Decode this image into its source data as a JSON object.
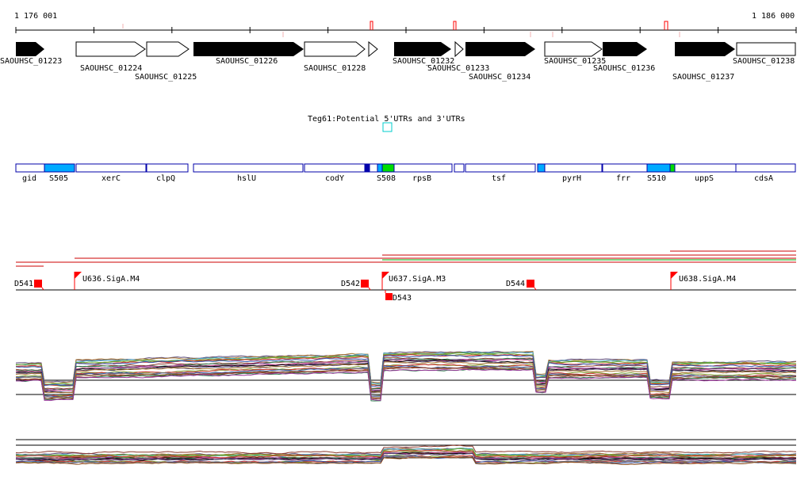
{
  "ruler": {
    "start_label": "1 176 001",
    "end_label": "1 186 000"
  },
  "colors": {
    "accent_red": "#ff0000",
    "region_blue": "#0000aa",
    "srna_cyan": "#00aaff",
    "srna_green": "#00dd00",
    "dark_blue": "#0000aa",
    "utr_cyan": "#00cccc"
  },
  "cds_genes": [
    {
      "id": "SAOUHSC_01223",
      "filled": true,
      "strand": "+"
    },
    {
      "id": "SAOUHSC_01224",
      "filled": false,
      "strand": "+"
    },
    {
      "id": "SAOUHSC_01225",
      "filled": false,
      "strand": "+"
    },
    {
      "id": "SAOUHSC_01226",
      "filled": true,
      "strand": "+"
    },
    {
      "id": "SAOUHSC_01228",
      "filled": false,
      "strand": "+"
    },
    {
      "id": "SAOUHSC_01232",
      "filled": true,
      "strand": "+"
    },
    {
      "id": "SAOUHSC_01233",
      "filled": false,
      "strand": "+"
    },
    {
      "id": "SAOUHSC_01234",
      "filled": true,
      "strand": "+"
    },
    {
      "id": "SAOUHSC_01235",
      "filled": false,
      "strand": "+"
    },
    {
      "id": "SAOUHSC_01236",
      "filled": true,
      "strand": "+"
    },
    {
      "id": "SAOUHSC_01237",
      "filled": true,
      "strand": "+"
    },
    {
      "id": "SAOUHSC_01238",
      "filled": false,
      "strand": "+"
    }
  ],
  "utr_track": {
    "label": "Teg61:Potential 5'UTRs and 3'UTRs"
  },
  "gene_names": [
    "gid",
    "S505",
    "xerC",
    "clpQ",
    "hslU",
    "codY",
    "S508",
    "rpsB",
    "tsf",
    "pyrH",
    "frr",
    "S510",
    "uppS",
    "cdsA"
  ],
  "promoters": [
    {
      "label": "D541",
      "kind": "D"
    },
    {
      "label": "U636.SigA.M4",
      "kind": "U"
    },
    {
      "label": "D542",
      "kind": "D"
    },
    {
      "label": "U637.SigA.M3",
      "kind": "U"
    },
    {
      "label": "D543",
      "kind": "D"
    },
    {
      "label": "D544",
      "kind": "D"
    },
    {
      "label": "U638.SigA.M4",
      "kind": "U"
    }
  ]
}
